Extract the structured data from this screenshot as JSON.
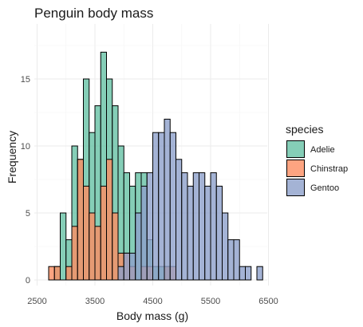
{
  "chart_data": {
    "type": "bar",
    "subtype": "overlaid-histogram",
    "title": "Penguin body mass",
    "xlabel": "Body mass (g)",
    "ylabel": "Frequency",
    "bin_width": 100,
    "xlim": [
      2500,
      6500
    ],
    "ylim": [
      0,
      18
    ],
    "x_ticks": [
      2500,
      3500,
      4500,
      5500,
      6500
    ],
    "y_ticks": [
      0,
      5,
      10,
      15
    ],
    "grid": true,
    "legend": {
      "title": "species",
      "position": "right"
    },
    "series": [
      {
        "name": "Adelie",
        "color": "#66c2a5",
        "bin_starts": [
          2800,
          2900,
          3000,
          3100,
          3200,
          3300,
          3400,
          3500,
          3600,
          3700,
          3800,
          3900,
          4000,
          4100,
          4200,
          4300,
          4400,
          4500,
          4600,
          4700
        ],
        "counts": [
          1,
          5,
          3,
          10,
          9,
          15,
          11,
          13,
          17,
          15,
          13,
          10,
          8,
          7,
          8,
          8,
          3,
          1,
          1,
          1
        ]
      },
      {
        "name": "Chinstrap",
        "color": "#fc8d62",
        "bin_starts": [
          2700,
          2800,
          3000,
          3100,
          3200,
          3300,
          3400,
          3500,
          3600,
          3700,
          3800,
          3900,
          4000,
          4100,
          4300,
          4400,
          4700,
          4800
        ],
        "counts": [
          1,
          1,
          1,
          4,
          9,
          7,
          5,
          4,
          7,
          9,
          5,
          2,
          2,
          1,
          1,
          1,
          1,
          1
        ]
      },
      {
        "name": "Gentoo",
        "color": "#8da0cb",
        "bin_starts": [
          3900,
          4000,
          4100,
          4200,
          4300,
          4400,
          4500,
          4600,
          4700,
          4800,
          4900,
          5000,
          5100,
          5200,
          5300,
          5400,
          5500,
          5600,
          5700,
          5800,
          5900,
          6000,
          6100,
          6300
        ],
        "counts": [
          1,
          2,
          2,
          5,
          7,
          8,
          11,
          11,
          12,
          11,
          9,
          8,
          7,
          8,
          8,
          7,
          8,
          7,
          5,
          3,
          3,
          1,
          1,
          1
        ]
      }
    ]
  }
}
